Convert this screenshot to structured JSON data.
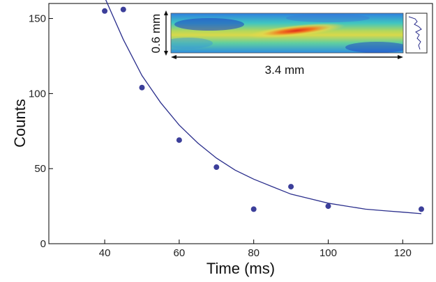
{
  "chart_data": {
    "type": "scatter",
    "title": "",
    "xlabel": "Time (ms)",
    "ylabel": "Counts",
    "xlim": [
      25,
      128
    ],
    "ylim": [
      0,
      160
    ],
    "x_ticks": [
      40,
      60,
      80,
      100,
      120
    ],
    "y_ticks": [
      0,
      50,
      100,
      150
    ],
    "grid": false,
    "series": [
      {
        "kind": "points",
        "color": "#3c3f9a",
        "x": [
          40,
          45,
          50,
          60,
          70,
          80,
          90,
          100,
          125
        ],
        "y": [
          155,
          156,
          104,
          69,
          51,
          23,
          38,
          25,
          23
        ]
      },
      {
        "kind": "fit-line",
        "color": "#2a2e8c",
        "x": [
          40,
          45,
          50,
          55,
          60,
          65,
          70,
          75,
          80,
          85,
          90,
          95,
          100,
          105,
          110,
          115,
          120,
          125
        ],
        "y": [
          164,
          136,
          112,
          94,
          79,
          67,
          57,
          49,
          43,
          38,
          33,
          30,
          27,
          25,
          23,
          22,
          21,
          20
        ]
      }
    ],
    "inset": {
      "width_label": "3.4 mm",
      "height_label": "0.6 mm",
      "colormap": [
        "#1e3fc4",
        "#2f86e0",
        "#2ec8c8",
        "#7fd47f",
        "#e8e24a",
        "#f2a03a",
        "#e23a1f"
      ]
    }
  }
}
